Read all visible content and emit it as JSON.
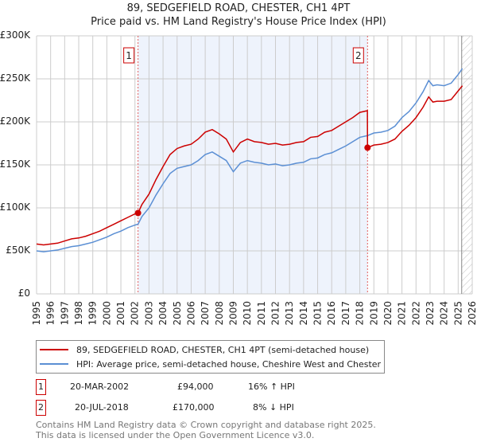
{
  "chart_data": {
    "type": "line",
    "title": "89, SEDGEFIELD ROAD, CHESTER, CH1 4PT",
    "subtitle": "Price paid vs. HM Land Registry's House Price Index (HPI)",
    "xlim": [
      1995,
      2026
    ],
    "ylim": [
      0,
      300000
    ],
    "yticks": [
      {
        "v": 0,
        "l": "£0"
      },
      {
        "v": 50000,
        "l": "£50K"
      },
      {
        "v": 100000,
        "l": "£100K"
      },
      {
        "v": 150000,
        "l": "£150K"
      },
      {
        "v": 200000,
        "l": "£200K"
      },
      {
        "v": 250000,
        "l": "£250K"
      },
      {
        "v": 300000,
        "l": "£300K"
      }
    ],
    "xticks": [
      "1995",
      "1996",
      "1997",
      "1998",
      "1999",
      "2000",
      "2001",
      "2002",
      "2003",
      "2004",
      "2005",
      "2006",
      "2007",
      "2008",
      "2009",
      "2010",
      "2011",
      "2012",
      "2013",
      "2014",
      "2015",
      "2016",
      "2017",
      "2018",
      "2019",
      "2020",
      "2021",
      "2022",
      "2023",
      "2024",
      "2025",
      "2026"
    ],
    "grid": true,
    "shaded_range": [
      2002.22,
      2018.55
    ],
    "forecast_from": 2025.25,
    "series": [
      {
        "name": "89, SEDGEFIELD ROAD, CHESTER, CH1 4PT (semi-detached house)",
        "color": "#cc0000",
        "points": [
          [
            1995,
            58
          ],
          [
            1995.5,
            57
          ],
          [
            1996,
            58
          ],
          [
            1996.5,
            59
          ],
          [
            1997,
            61.5
          ],
          [
            1997.5,
            64
          ],
          [
            1998,
            65
          ],
          [
            1998.5,
            67
          ],
          [
            1999,
            70
          ],
          [
            1999.5,
            73
          ],
          [
            2000,
            77
          ],
          [
            2000.5,
            81
          ],
          [
            2001,
            85
          ],
          [
            2001.5,
            89
          ],
          [
            2002,
            93
          ],
          [
            2002.22,
            94
          ],
          [
            2002.5,
            104
          ],
          [
            2003,
            116
          ],
          [
            2003.5,
            133
          ],
          [
            2004,
            148
          ],
          [
            2004.5,
            162
          ],
          [
            2005,
            169
          ],
          [
            2005.5,
            172
          ],
          [
            2006,
            174
          ],
          [
            2006.5,
            180
          ],
          [
            2007,
            188
          ],
          [
            2007.5,
            191
          ],
          [
            2008,
            186
          ],
          [
            2008.5,
            180
          ],
          [
            2009,
            165
          ],
          [
            2009.5,
            176
          ],
          [
            2010,
            180
          ],
          [
            2010.5,
            177
          ],
          [
            2011,
            176
          ],
          [
            2011.5,
            174
          ],
          [
            2012,
            175
          ],
          [
            2012.5,
            173
          ],
          [
            2013,
            174
          ],
          [
            2013.5,
            176
          ],
          [
            2014,
            177
          ],
          [
            2014.5,
            182
          ],
          [
            2015,
            183
          ],
          [
            2015.5,
            188
          ],
          [
            2016,
            190
          ],
          [
            2016.5,
            195
          ],
          [
            2017,
            200
          ],
          [
            2017.5,
            205
          ],
          [
            2018,
            211
          ],
          [
            2018.54,
            213
          ],
          [
            2018.55,
            170
          ],
          [
            2019,
            173
          ],
          [
            2019.5,
            174
          ],
          [
            2020,
            176
          ],
          [
            2020.5,
            180
          ],
          [
            2021,
            189
          ],
          [
            2021.5,
            196
          ],
          [
            2022,
            205
          ],
          [
            2022.5,
            217
          ],
          [
            2022.9,
            229
          ],
          [
            2023.2,
            223
          ],
          [
            2023.5,
            224
          ],
          [
            2024,
            224
          ],
          [
            2024.5,
            226
          ],
          [
            2025,
            236
          ],
          [
            2025.3,
            242
          ]
        ]
      },
      {
        "name": "HPI: Average price, semi-detached house, Cheshire West and Chester",
        "color": "#5b8fd4",
        "points": [
          [
            1995,
            50
          ],
          [
            1995.5,
            49
          ],
          [
            1996,
            50
          ],
          [
            1996.5,
            51
          ],
          [
            1997,
            53
          ],
          [
            1997.5,
            55
          ],
          [
            1998,
            56
          ],
          [
            1998.5,
            58
          ],
          [
            1999,
            60
          ],
          [
            1999.5,
            63
          ],
          [
            2000,
            66
          ],
          [
            2000.5,
            70
          ],
          [
            2001,
            73
          ],
          [
            2001.5,
            77
          ],
          [
            2002,
            80
          ],
          [
            2002.22,
            81
          ],
          [
            2002.5,
            90
          ],
          [
            2003,
            100
          ],
          [
            2003.5,
            115
          ],
          [
            2004,
            128
          ],
          [
            2004.5,
            140
          ],
          [
            2005,
            146
          ],
          [
            2005.5,
            148
          ],
          [
            2006,
            150
          ],
          [
            2006.5,
            155
          ],
          [
            2007,
            162
          ],
          [
            2007.5,
            165
          ],
          [
            2008,
            160
          ],
          [
            2008.5,
            155
          ],
          [
            2009,
            142
          ],
          [
            2009.5,
            152
          ],
          [
            2010,
            155
          ],
          [
            2010.5,
            153
          ],
          [
            2011,
            152
          ],
          [
            2011.5,
            150
          ],
          [
            2012,
            151
          ],
          [
            2012.5,
            149
          ],
          [
            2013,
            150
          ],
          [
            2013.5,
            152
          ],
          [
            2014,
            153
          ],
          [
            2014.5,
            157
          ],
          [
            2015,
            158
          ],
          [
            2015.5,
            162
          ],
          [
            2016,
            164
          ],
          [
            2016.5,
            168
          ],
          [
            2017,
            172
          ],
          [
            2017.5,
            177
          ],
          [
            2018,
            182
          ],
          [
            2018.55,
            184
          ],
          [
            2019,
            187
          ],
          [
            2019.5,
            188
          ],
          [
            2020,
            190
          ],
          [
            2020.5,
            195
          ],
          [
            2021,
            205
          ],
          [
            2021.5,
            212
          ],
          [
            2022,
            222
          ],
          [
            2022.5,
            235
          ],
          [
            2022.9,
            248
          ],
          [
            2023.2,
            242
          ],
          [
            2023.5,
            243
          ],
          [
            2024,
            242
          ],
          [
            2024.5,
            245
          ],
          [
            2025,
            255
          ],
          [
            2025.3,
            262
          ]
        ]
      }
    ],
    "sales": [
      {
        "id": "1",
        "x": 2002.22,
        "value": 94000,
        "date": "20-MAR-2002",
        "price": "£94,000",
        "hpi": "16% ↑ HPI"
      },
      {
        "id": "2",
        "x": 2018.55,
        "value": 170000,
        "date": "20-JUL-2018",
        "price": "£170,000",
        "hpi": "8% ↓ HPI"
      }
    ]
  },
  "footer": [
    "Contains HM Land Registry data © Crown copyright and database right 2025.",
    "This data is licensed under the Open Government Licence v3.0."
  ]
}
